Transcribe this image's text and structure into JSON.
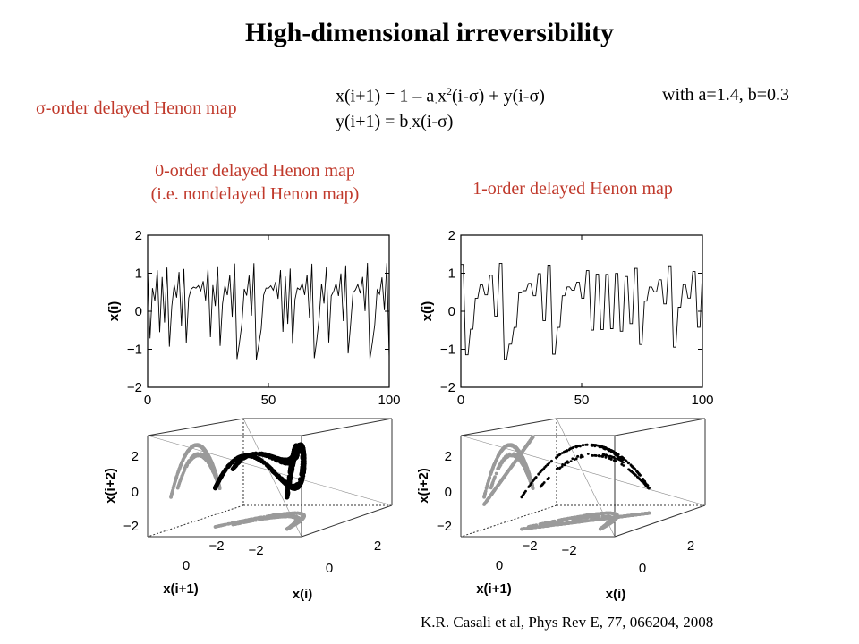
{
  "slide": {
    "title": "High-dimensional irreversibility",
    "map_label": "σ-order delayed Henon map",
    "eq1": {
      "lhs": "x(i+1) = 1 – a",
      "dot": "·",
      "x": "x",
      "sup": "2",
      "rest": "(i-σ) + y(i-σ)"
    },
    "eq2": {
      "lhs": "y(i+1) = b",
      "dot": "·",
      "rest": "x(i-σ)"
    },
    "params": "with a=1.4, b=0.3",
    "left_caption_1": "0-order delayed Henon map",
    "left_caption_2": "(i.e. nondelayed Henon map)",
    "right_caption": "1-order delayed Henon map",
    "reference": "K.R. Casali et al, Phys Rev E, 77, 066204, 2008"
  },
  "colors": {
    "accent_red": "#c0392b",
    "black": "#000000",
    "gray_points": "#9a9a9a"
  },
  "chart_data": [
    {
      "type": "line",
      "panel": "left time series",
      "ylabel": "x(i)",
      "xlim": [
        0,
        100
      ],
      "ylim": [
        -2,
        2
      ],
      "xticks": [
        "0",
        "50",
        "100"
      ],
      "yticks": [
        "2",
        "1",
        "0",
        "−1",
        "−2"
      ],
      "map": {
        "a": 1.4,
        "b": 0.3,
        "sigma": 0
      }
    },
    {
      "type": "line",
      "panel": "right time series",
      "ylabel": "x(i)",
      "xlim": [
        0,
        100
      ],
      "ylim": [
        -2,
        2
      ],
      "xticks": [
        "0",
        "50",
        "100"
      ],
      "yticks": [
        "2",
        "1",
        "0",
        "−1",
        "−2"
      ],
      "map": {
        "a": 1.4,
        "b": 0.3,
        "sigma": 1
      }
    },
    {
      "type": "scatter",
      "panel": "left 3D embedding",
      "xlabel": "x(i)",
      "ylabel": "x(i+1)",
      "zlabel": "x(i+2)",
      "x_ticks": [
        "0",
        "2"
      ],
      "y_ticks": [
        "−2",
        "0"
      ],
      "z_ticks": [
        "2",
        "0",
        "−2"
      ],
      "x_tick_extra": "−2",
      "projections": "gray",
      "attractor": "black"
    },
    {
      "type": "scatter",
      "panel": "right 3D embedding",
      "xlabel": "x(i)",
      "ylabel": "x(i+1)",
      "zlabel": "x(i+2)",
      "x_ticks": [
        "0",
        "2"
      ],
      "y_ticks": [
        "−2",
        "0"
      ],
      "z_ticks": [
        "2",
        "0",
        "−2"
      ],
      "x_tick_extra": "−2",
      "projections": "gray",
      "attractor": "black"
    }
  ]
}
